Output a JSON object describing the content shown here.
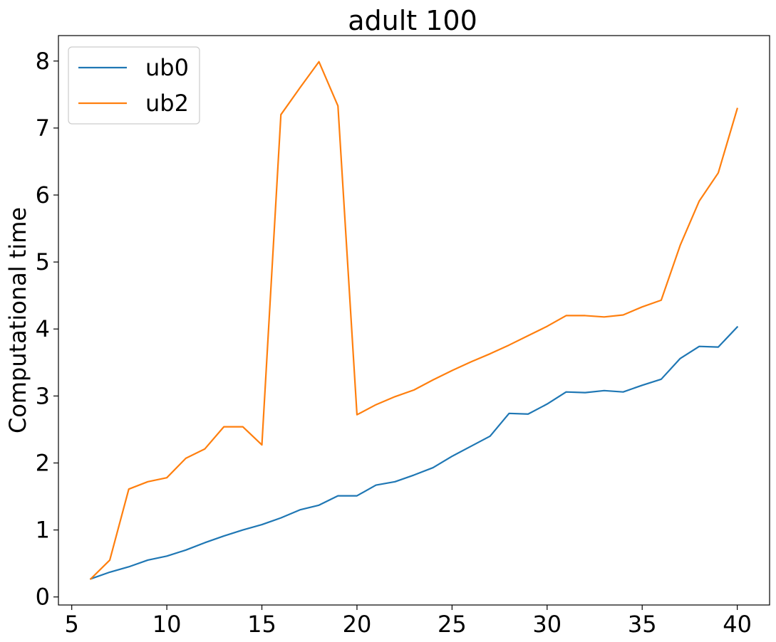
{
  "chart_data": {
    "type": "line",
    "title": "adult 100",
    "xlabel": "",
    "ylabel": "Computational time",
    "xlim": [
      4.3,
      41.7
    ],
    "ylim": [
      -0.12,
      8.38
    ],
    "xticks": [
      5,
      10,
      15,
      20,
      25,
      30,
      35,
      40
    ],
    "yticks": [
      0,
      1,
      2,
      3,
      4,
      5,
      6,
      7,
      8
    ],
    "grid": false,
    "legend_position": "top-left",
    "x": [
      6,
      7,
      8,
      9,
      10,
      11,
      12,
      13,
      14,
      15,
      16,
      17,
      18,
      19,
      20,
      21,
      22,
      23,
      24,
      25,
      26,
      27,
      28,
      29,
      30,
      31,
      32,
      33,
      34,
      35,
      36,
      37,
      38,
      39,
      40
    ],
    "series": [
      {
        "name": "ub0",
        "color": "#1f77b4",
        "values": [
          0.27,
          0.37,
          0.45,
          0.55,
          0.61,
          0.7,
          0.81,
          0.91,
          1.0,
          1.08,
          1.18,
          1.3,
          1.37,
          1.51,
          1.51,
          1.67,
          1.72,
          1.82,
          1.93,
          2.1,
          2.25,
          2.4,
          2.74,
          2.73,
          2.88,
          3.06,
          3.05,
          3.08,
          3.06,
          3.16,
          3.25,
          3.56,
          3.74,
          3.73,
          4.03
        ]
      },
      {
        "name": "ub2",
        "color": "#ff7f0e",
        "values": [
          0.27,
          0.55,
          1.61,
          1.72,
          1.78,
          2.07,
          2.21,
          2.54,
          2.54,
          2.27,
          7.2,
          7.6,
          7.99,
          7.33,
          2.72,
          2.87,
          2.99,
          3.09,
          3.24,
          3.38,
          3.51,
          3.63,
          3.76,
          3.9,
          4.04,
          4.2,
          4.2,
          4.18,
          4.21,
          4.33,
          4.43,
          5.25,
          5.91,
          6.33,
          7.29
        ]
      }
    ]
  }
}
